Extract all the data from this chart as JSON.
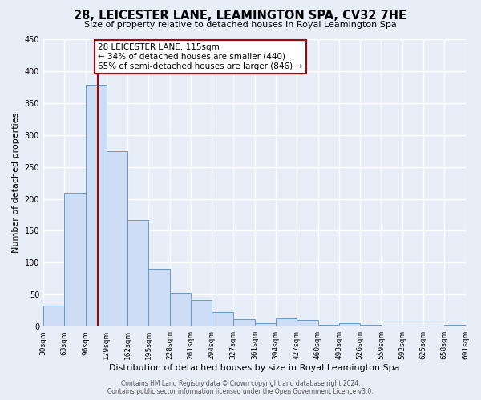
{
  "title": "28, LEICESTER LANE, LEAMINGTON SPA, CV32 7HE",
  "subtitle": "Size of property relative to detached houses in Royal Leamington Spa",
  "xlabel": "Distribution of detached houses by size in Royal Leamington Spa",
  "ylabel": "Number of detached properties",
  "bar_color": "#ccddf5",
  "bar_edge_color": "#6699cc",
  "background_color": "#e8eef8",
  "plot_bg_color": "#e8eef8",
  "grid_color": "white",
  "bins": [
    30,
    63,
    96,
    129,
    162,
    195,
    228,
    261,
    294,
    327,
    361,
    394,
    427,
    460,
    493,
    526,
    559,
    592,
    625,
    658,
    691
  ],
  "values": [
    33,
    210,
    378,
    275,
    167,
    91,
    53,
    41,
    23,
    12,
    5,
    13,
    10,
    3,
    5,
    3,
    1,
    1,
    1,
    3
  ],
  "tick_labels": [
    "30sqm",
    "63sqm",
    "96sqm",
    "129sqm",
    "162sqm",
    "195sqm",
    "228sqm",
    "261sqm",
    "294sqm",
    "327sqm",
    "361sqm",
    "394sqm",
    "427sqm",
    "460sqm",
    "493sqm",
    "526sqm",
    "559sqm",
    "592sqm",
    "625sqm",
    "658sqm",
    "691sqm"
  ],
  "ylim": [
    0,
    450
  ],
  "yticks": [
    0,
    50,
    100,
    150,
    200,
    250,
    300,
    350,
    400,
    450
  ],
  "property_line_x": 115,
  "property_line_color": "#aa0000",
  "annotation_title": "28 LEICESTER LANE: 115sqm",
  "annotation_line1": "← 34% of detached houses are smaller (440)",
  "annotation_line2": "65% of semi-detached houses are larger (846) →",
  "annotation_box_color": "white",
  "annotation_box_edge": "#aa0000",
  "footer_line1": "Contains HM Land Registry data © Crown copyright and database right 2024.",
  "footer_line2": "Contains public sector information licensed under the Open Government Licence v3.0."
}
